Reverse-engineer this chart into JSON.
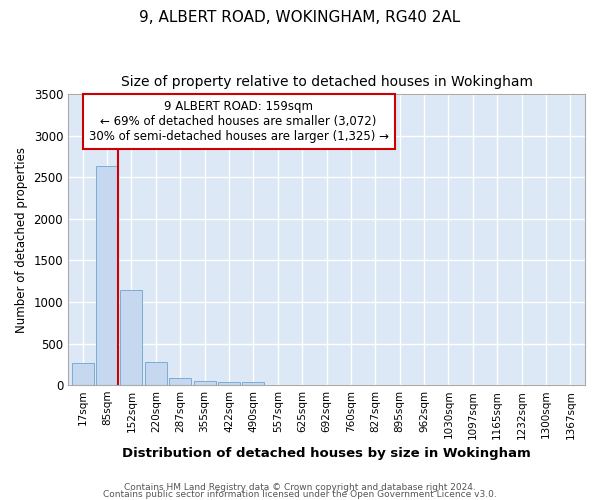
{
  "title1": "9, ALBERT ROAD, WOKINGHAM, RG40 2AL",
  "title2": "Size of property relative to detached houses in Wokingham",
  "xlabel": "Distribution of detached houses by size in Wokingham",
  "ylabel": "Number of detached properties",
  "footnote1": "Contains HM Land Registry data © Crown copyright and database right 2024.",
  "footnote2": "Contains public sector information licensed under the Open Government Licence v3.0.",
  "bar_labels": [
    "17sqm",
    "85sqm",
    "152sqm",
    "220sqm",
    "287sqm",
    "355sqm",
    "422sqm",
    "490sqm",
    "557sqm",
    "625sqm",
    "692sqm",
    "760sqm",
    "827sqm",
    "895sqm",
    "962sqm",
    "1030sqm",
    "1097sqm",
    "1165sqm",
    "1232sqm",
    "1300sqm",
    "1367sqm"
  ],
  "bar_values": [
    270,
    2640,
    1140,
    275,
    90,
    50,
    35,
    35,
    0,
    0,
    0,
    0,
    0,
    0,
    0,
    0,
    0,
    0,
    0,
    0,
    0
  ],
  "bar_color": "#c5d8f0",
  "bar_edge_color": "#7aadd4",
  "property_line_color": "#cc0000",
  "annotation_text": "9 ALBERT ROAD: 159sqm\n← 69% of detached houses are smaller (3,072)\n30% of semi-detached houses are larger (1,325) →",
  "annotation_box_color": "#ffffff",
  "annotation_box_edge": "#cc0000",
  "ylim": [
    0,
    3500
  ],
  "yticks": [
    0,
    500,
    1000,
    1500,
    2000,
    2500,
    3000,
    3500
  ],
  "fig_background_color": "#ffffff",
  "axes_background": "#dce8f5",
  "grid_color": "#ffffff",
  "title_fontsize": 11,
  "subtitle_fontsize": 10
}
